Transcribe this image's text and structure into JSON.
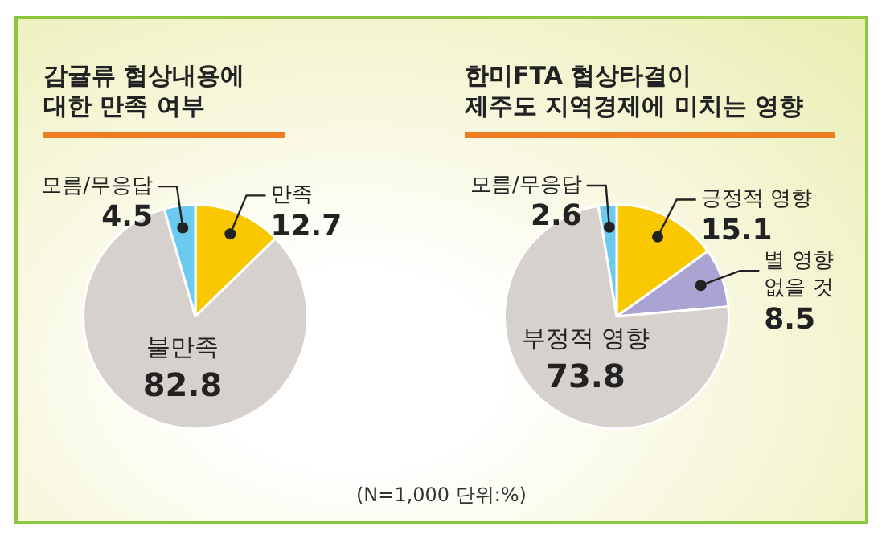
{
  "chart_data": [
    {
      "type": "pie",
      "title": "감귤류 협상내용에\n대한 만족 여부",
      "categories": [
        "만족",
        "불만족",
        "모름/무응답"
      ],
      "values": [
        12.7,
        82.8,
        4.5
      ],
      "colors": [
        "#f9c800",
        "#d7d1ce",
        "#6ccaf0"
      ],
      "data_labels": true
    },
    {
      "type": "pie",
      "title": "한미FTA 협상타결이\n제주도 지역경제에 미치는 영향",
      "categories": [
        "긍정적 영향",
        "별 영향\n없을 것",
        "부정적 영향",
        "모름/무응답"
      ],
      "values": [
        15.1,
        8.5,
        73.8,
        2.6
      ],
      "colors": [
        "#f9c800",
        "#aaa4d2",
        "#d7d1ce",
        "#6ccaf0"
      ],
      "data_labels": true,
      "annotations": [
        "(N=1,000 단위:%)"
      ]
    }
  ]
}
